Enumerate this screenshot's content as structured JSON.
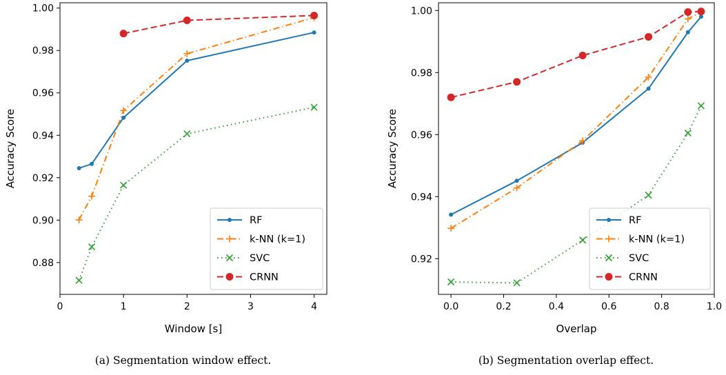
{
  "chart_data": [
    {
      "type": "line",
      "title": "",
      "xlabel": "Window [s]",
      "ylabel": "Accuracy Score",
      "xlim": [
        0,
        4.2
      ],
      "ylim": [
        0.865,
        1.0025
      ],
      "xticks": [
        0,
        1,
        2,
        3,
        4
      ],
      "xtick_labels": [
        "0",
        "1",
        "2",
        "3",
        "4"
      ],
      "yticks": [
        0.88,
        0.9,
        0.92,
        0.94,
        0.96,
        0.98,
        1.0
      ],
      "ytick_labels": [
        "0.88",
        "0.90",
        "0.92",
        "0.94",
        "0.96",
        "0.98",
        "1.00"
      ],
      "grid": false,
      "legend_position": "lower-right",
      "caption": "(a) Segmentation window effect.",
      "series": [
        {
          "name": "RF",
          "color": "#1f77b4",
          "style": "solid",
          "marker": "dot",
          "x": [
            0.3,
            0.5,
            1,
            2,
            4
          ],
          "y": [
            0.9245,
            0.9265,
            0.9483,
            0.9752,
            0.9885
          ]
        },
        {
          "name": "k-NN (k=1)",
          "color": "#ff7f0e",
          "style": "dashdot",
          "marker": "plus",
          "x": [
            0.3,
            0.5,
            1,
            2,
            4
          ],
          "y": [
            0.9001,
            0.9113,
            0.9517,
            0.9785,
            0.9955
          ]
        },
        {
          "name": "SVC",
          "color": "#2ca02c",
          "style": "dotted",
          "marker": "x",
          "x": [
            0.3,
            0.5,
            1,
            2,
            4
          ],
          "y": [
            0.8716,
            0.8874,
            0.9165,
            0.9407,
            0.9532
          ]
        },
        {
          "name": "CRNN",
          "color": "#d62728",
          "style": "dashed",
          "marker": "bigdot",
          "x": [
            1,
            2,
            4
          ],
          "y": [
            0.988,
            0.9942,
            0.9965
          ]
        }
      ]
    },
    {
      "type": "line",
      "title": "",
      "xlabel": "Overlap",
      "ylabel": "Accuracy Score",
      "xlim": [
        -0.0475,
        1.0
      ],
      "ylim": [
        0.9085,
        1.0025
      ],
      "xticks": [
        0.0,
        0.2,
        0.4,
        0.6,
        0.8,
        1.0
      ],
      "xtick_labels": [
        "0.0",
        "0.2",
        "0.4",
        "0.6",
        "0.8",
        "1.0"
      ],
      "yticks": [
        0.92,
        0.94,
        0.96,
        0.98,
        1.0
      ],
      "ytick_labels": [
        "0.92",
        "0.94",
        "0.96",
        "0.98",
        "1.00"
      ],
      "grid": false,
      "legend_position": "lower-right",
      "caption": "(b) Segmentation overlap effect.",
      "series": [
        {
          "name": "RF",
          "color": "#1f77b4",
          "style": "solid",
          "marker": "dot",
          "x": [
            0,
            0.25,
            0.5,
            0.75,
            0.9,
            0.95
          ],
          "y": [
            0.9342,
            0.9451,
            0.9574,
            0.9748,
            0.993,
            0.998
          ]
        },
        {
          "name": "k-NN (k=1)",
          "color": "#ff7f0e",
          "style": "dashdot",
          "marker": "plus",
          "x": [
            0,
            0.25,
            0.5,
            0.75,
            0.9,
            0.95
          ],
          "y": [
            0.9298,
            0.9428,
            0.958,
            0.9785,
            0.9973,
            0.9995
          ]
        },
        {
          "name": "SVC",
          "color": "#2ca02c",
          "style": "dotted",
          "marker": "x",
          "x": [
            0,
            0.25,
            0.5,
            0.75,
            0.9,
            0.95
          ],
          "y": [
            0.9125,
            0.9122,
            0.926,
            0.9405,
            0.9605,
            0.9693
          ]
        },
        {
          "name": "CRNN",
          "color": "#d62728",
          "style": "dashed",
          "marker": "bigdot",
          "x": [
            0,
            0.25,
            0.5,
            0.75,
            0.9,
            0.95
          ],
          "y": [
            0.972,
            0.977,
            0.9855,
            0.9915,
            0.9995,
            0.9997
          ]
        }
      ]
    }
  ]
}
